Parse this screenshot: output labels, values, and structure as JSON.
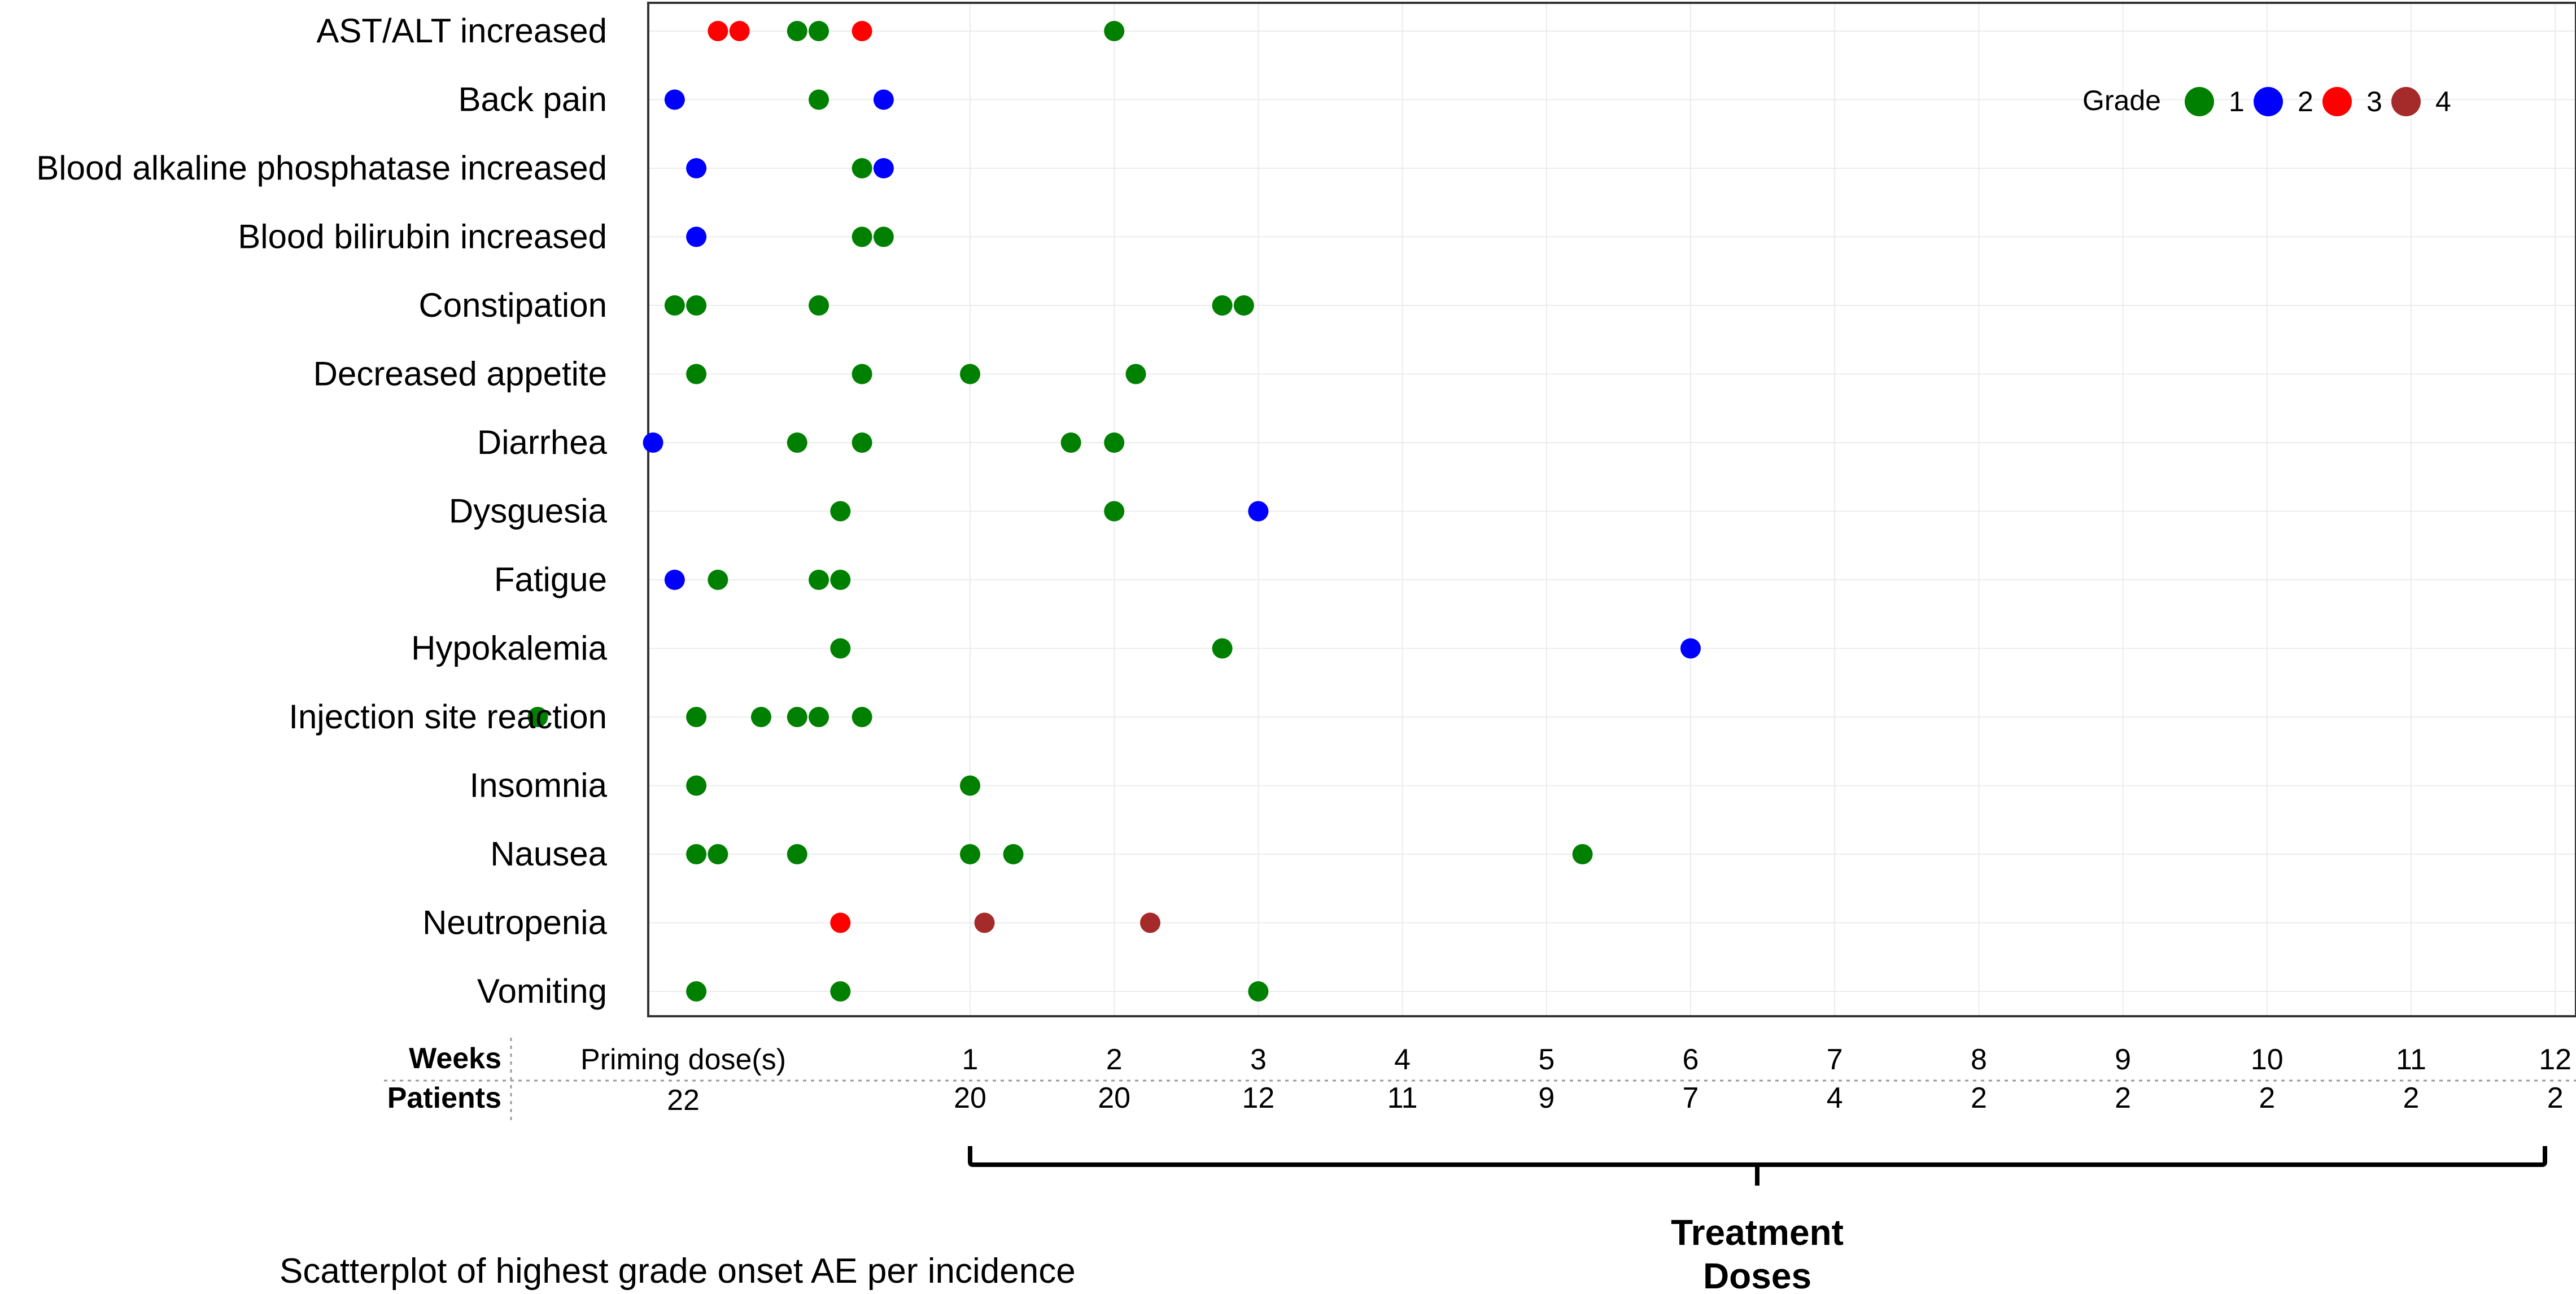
{
  "chart_data": {
    "type": "scatter",
    "caption": "Scatterplot of highest grade onset AE per incidence",
    "categories": [
      "AST/ALT increased",
      "Back pain",
      "Blood alkaline phosphatase increased",
      "Blood bilirubin increased",
      "Constipation",
      "Decreased appetite",
      "Diarrhea",
      "Dysguesia",
      "Fatigue",
      "Hypokalemia",
      "Injection site reaction",
      "Insomnia",
      "Nausea",
      "Neutropenia",
      "Vomiting"
    ],
    "legend": {
      "title": "Grade",
      "placement": "top-right",
      "items": [
        {
          "grade": "1",
          "color": "#008000"
        },
        {
          "grade": "2",
          "color": "#0000ff"
        },
        {
          "grade": "3",
          "color": "#ff0000"
        },
        {
          "grade": "4",
          "color": "#a52a2a"
        }
      ]
    },
    "timeline": {
      "weeks_label": "Weeks",
      "patients_label": "Patients",
      "priming_label": "Priming dose(s)",
      "priming_patients": "22",
      "weeks": [
        "1",
        "2",
        "3",
        "4",
        "5",
        "6",
        "7",
        "8",
        "9",
        "10",
        "11",
        "12"
      ],
      "patients": [
        "20",
        "20",
        "12",
        "11",
        "9",
        "7",
        "4",
        "2",
        "2",
        "2",
        "2",
        "2"
      ],
      "treatment_label_line1": "Treatment",
      "treatment_label_line2": "Doses"
    },
    "xlim": [
      -2.2,
      11.9
    ],
    "points": [
      {
        "cat": 0,
        "x": -0.75,
        "grade": 3
      },
      {
        "cat": 0,
        "x": -0.6,
        "grade": 3
      },
      {
        "cat": 0,
        "x": -0.2,
        "grade": 1
      },
      {
        "cat": 0,
        "x": -0.05,
        "grade": 1
      },
      {
        "cat": 0,
        "x": 0.25,
        "grade": 3
      },
      {
        "cat": 0,
        "x": 2.0,
        "grade": 1
      },
      {
        "cat": 1,
        "x": -1.05,
        "grade": 2
      },
      {
        "cat": 1,
        "x": -0.05,
        "grade": 1
      },
      {
        "cat": 1,
        "x": 0.4,
        "grade": 2
      },
      {
        "cat": 2,
        "x": -0.9,
        "grade": 2
      },
      {
        "cat": 2,
        "x": 0.25,
        "grade": 1
      },
      {
        "cat": 2,
        "x": 0.4,
        "grade": 2
      },
      {
        "cat": 3,
        "x": -0.9,
        "grade": 2
      },
      {
        "cat": 3,
        "x": 0.25,
        "grade": 1
      },
      {
        "cat": 3,
        "x": 0.4,
        "grade": 1
      },
      {
        "cat": 4,
        "x": -1.05,
        "grade": 1
      },
      {
        "cat": 4,
        "x": -0.9,
        "grade": 1
      },
      {
        "cat": 4,
        "x": -0.05,
        "grade": 1
      },
      {
        "cat": 4,
        "x": 2.75,
        "grade": 1
      },
      {
        "cat": 4,
        "x": 2.9,
        "grade": 1
      },
      {
        "cat": 5,
        "x": -0.9,
        "grade": 1
      },
      {
        "cat": 5,
        "x": 0.25,
        "grade": 1
      },
      {
        "cat": 5,
        "x": 1.0,
        "grade": 1
      },
      {
        "cat": 5,
        "x": 2.15,
        "grade": 1
      },
      {
        "cat": 6,
        "x": -1.2,
        "grade": 2
      },
      {
        "cat": 6,
        "x": -0.2,
        "grade": 1
      },
      {
        "cat": 6,
        "x": 0.25,
        "grade": 1
      },
      {
        "cat": 6,
        "x": 1.7,
        "grade": 1
      },
      {
        "cat": 6,
        "x": 2.0,
        "grade": 1
      },
      {
        "cat": 7,
        "x": 0.1,
        "grade": 1
      },
      {
        "cat": 7,
        "x": 2.0,
        "grade": 1
      },
      {
        "cat": 7,
        "x": 3.0,
        "grade": 2
      },
      {
        "cat": 8,
        "x": -1.05,
        "grade": 2
      },
      {
        "cat": 8,
        "x": -0.75,
        "grade": 1
      },
      {
        "cat": 8,
        "x": -0.05,
        "grade": 1
      },
      {
        "cat": 8,
        "x": 0.1,
        "grade": 1
      },
      {
        "cat": 9,
        "x": 0.1,
        "grade": 1
      },
      {
        "cat": 9,
        "x": 2.75,
        "grade": 1
      },
      {
        "cat": 9,
        "x": 6.0,
        "grade": 2
      },
      {
        "cat": 10,
        "x": -2.0,
        "grade": 1
      },
      {
        "cat": 10,
        "x": -0.9,
        "grade": 1
      },
      {
        "cat": 10,
        "x": -0.45,
        "grade": 1
      },
      {
        "cat": 10,
        "x": -0.2,
        "grade": 1
      },
      {
        "cat": 10,
        "x": -0.05,
        "grade": 1
      },
      {
        "cat": 10,
        "x": 0.25,
        "grade": 1
      },
      {
        "cat": 11,
        "x": -0.9,
        "grade": 1
      },
      {
        "cat": 11,
        "x": 1.0,
        "grade": 1
      },
      {
        "cat": 12,
        "x": -0.9,
        "grade": 1
      },
      {
        "cat": 12,
        "x": -0.75,
        "grade": 1
      },
      {
        "cat": 12,
        "x": -0.2,
        "grade": 1
      },
      {
        "cat": 12,
        "x": 1.0,
        "grade": 1
      },
      {
        "cat": 12,
        "x": 1.3,
        "grade": 1
      },
      {
        "cat": 12,
        "x": 5.25,
        "grade": 1
      },
      {
        "cat": 13,
        "x": 0.1,
        "grade": 3
      },
      {
        "cat": 13,
        "x": 1.1,
        "grade": 4
      },
      {
        "cat": 13,
        "x": 2.25,
        "grade": 4
      },
      {
        "cat": 14,
        "x": -0.9,
        "grade": 1
      },
      {
        "cat": 14,
        "x": 0.1,
        "grade": 1
      },
      {
        "cat": 14,
        "x": 3.0,
        "grade": 1
      }
    ]
  }
}
